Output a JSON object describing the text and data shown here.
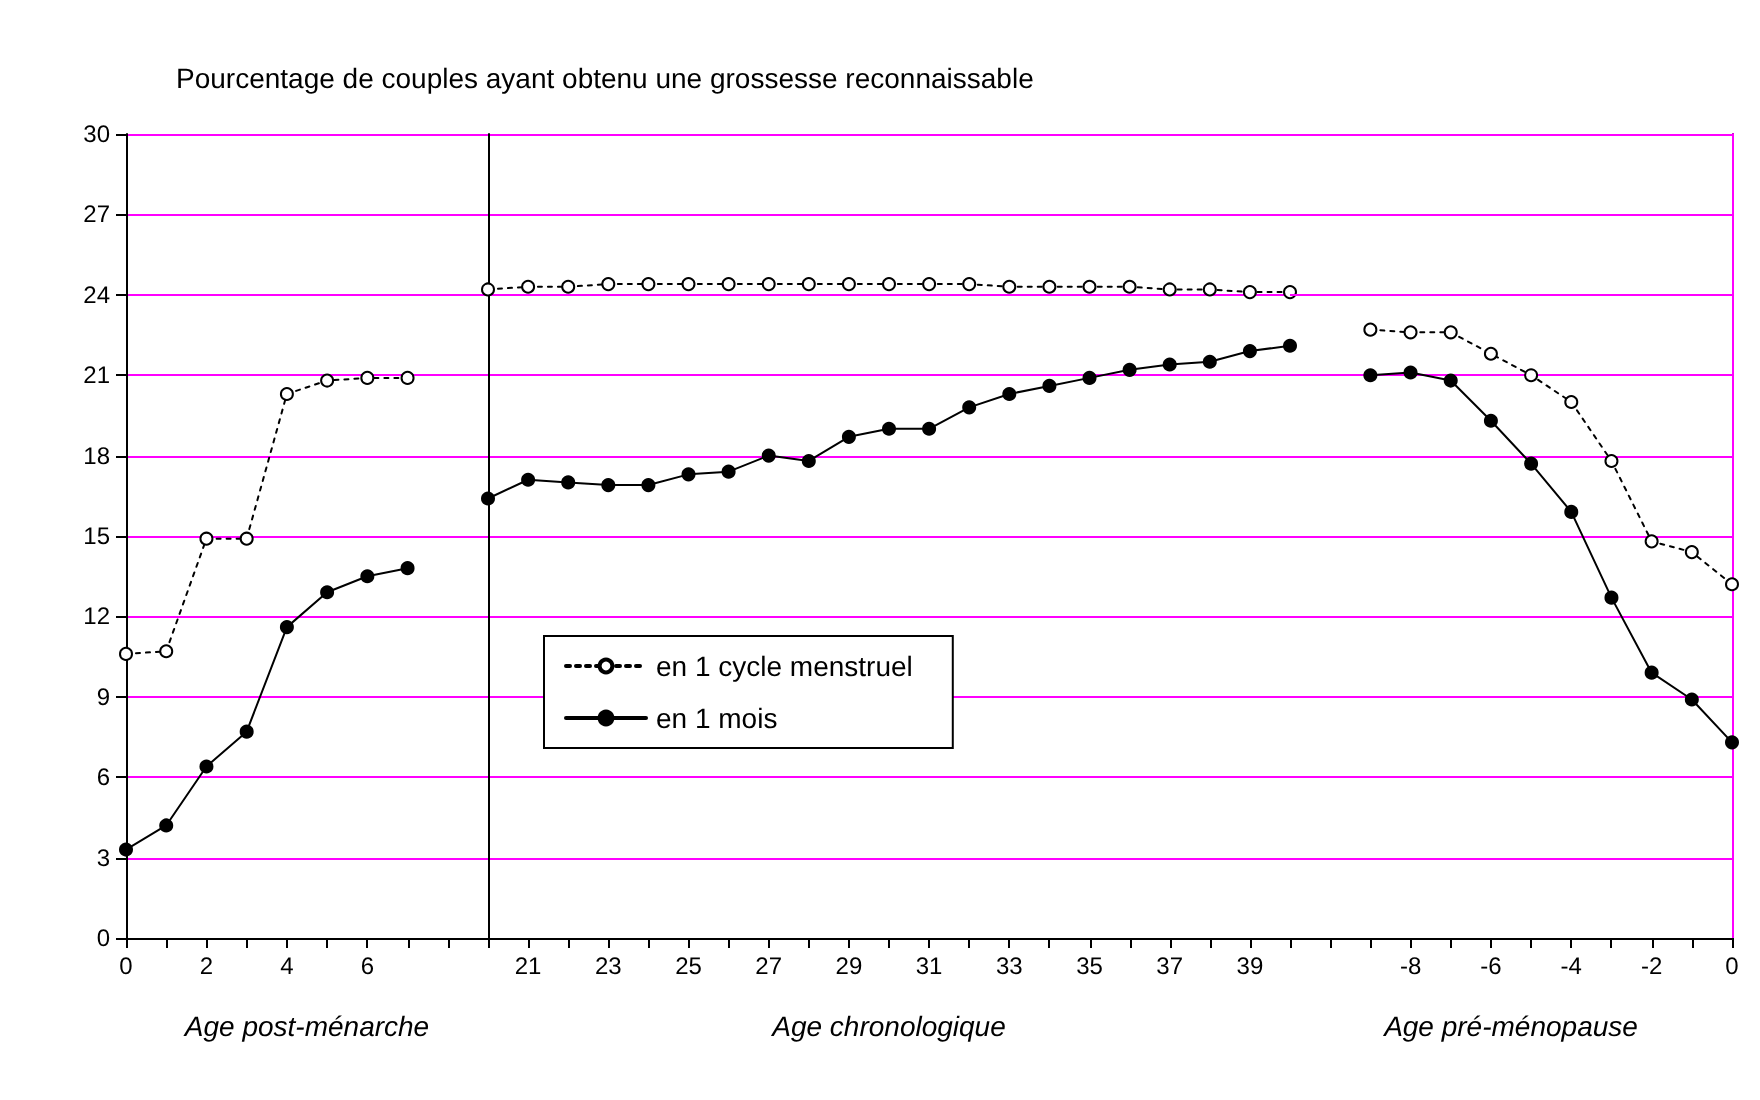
{
  "chart_data": [
    {
      "type": "line",
      "title": "Pourcentage de couples ayant obtenu une grossesse reconnaissable",
      "xlabel": "Age post-ménarche",
      "x": [
        0,
        1,
        2,
        3,
        4,
        5,
        6,
        7
      ],
      "xlim": [
        0,
        9
      ],
      "xticks": [
        0,
        {
          "value": 1,
          "label": null
        },
        2,
        {
          "value": 3,
          "label": null
        },
        4,
        {
          "value": 5,
          "label": null
        },
        6,
        {
          "value": 7,
          "label": null
        },
        {
          "value": 8,
          "label": null
        },
        {
          "value": 9,
          "label": null
        }
      ],
      "ylim": [
        0,
        30
      ],
      "yticks": [
        0,
        3,
        6,
        9,
        12,
        15,
        18,
        21,
        24,
        27,
        30
      ],
      "grid": "y",
      "marker": "circle",
      "series": [
        {
          "color": "#000000",
          "line_style": "dotted",
          "values": [
            10.6,
            10.7,
            14.9,
            14.9,
            20.3,
            20.8,
            20.9,
            20.9
          ]
        },
        {
          "color": "#000000",
          "line_style": "solid",
          "values": [
            3.3,
            4.2,
            6.4,
            7.7,
            11.6,
            12.9,
            13.5,
            13.8
          ]
        }
      ]
    },
    {
      "type": "line",
      "xlabel": "Age chronologique",
      "x": [
        20,
        21,
        22,
        23,
        24,
        25,
        26,
        27,
        28,
        29,
        30,
        31,
        32,
        33,
        34,
        35,
        36,
        37,
        38,
        39,
        40
      ],
      "xlim": [
        20,
        40
      ],
      "xticks": [
        {
          "value": 20,
          "label": null
        },
        21,
        {
          "value": 22,
          "label": null
        },
        23,
        {
          "value": 24,
          "label": null
        },
        25,
        {
          "value": 26,
          "label": null
        },
        27,
        {
          "value": 28,
          "label": null
        },
        29,
        {
          "value": 30,
          "label": null
        },
        31,
        {
          "value": 32,
          "label": null
        },
        33,
        {
          "value": 34,
          "label": null
        },
        35,
        {
          "value": 36,
          "label": null
        },
        37,
        {
          "value": 38,
          "label": null
        },
        39,
        {
          "value": 40,
          "label": null
        }
      ],
      "ylim": [
        0,
        30
      ],
      "yticks": [
        0,
        3,
        6,
        9,
        12,
        15,
        18,
        21,
        24,
        27,
        30
      ],
      "tick_labels": "x",
      "grid": "y",
      "marker": "circle",
      "legend": "bottom left",
      "series": [
        {
          "name": "en 1 cycle menstruel",
          "color": "#000000",
          "line_style": "dotted",
          "values": [
            24.2,
            24.3,
            24.3,
            24.4,
            24.4,
            24.4,
            24.4,
            24.4,
            24.4,
            24.4,
            24.4,
            24.4,
            24.4,
            24.3,
            24.3,
            24.3,
            24.3,
            24.2,
            24.2,
            24.1,
            24.1
          ]
        },
        {
          "name": "en 1 mois",
          "color": "#000000",
          "line_style": "solid",
          "values": [
            16.4,
            17.1,
            17.0,
            16.9,
            16.9,
            17.3,
            17.4,
            18.0,
            17.8,
            18.7,
            19.0,
            19.0,
            19.8,
            20.3,
            20.6,
            20.9,
            21.2,
            21.4,
            21.5,
            21.9,
            22.1
          ]
        }
      ]
    },
    {
      "type": "line",
      "xlabel": "Age pré-ménopause",
      "x": [
        -9,
        -8,
        -7,
        -6,
        -5,
        -4,
        -3,
        -2,
        -1,
        0
      ],
      "xlim": [
        -11,
        0
      ],
      "xticks": [
        {
          "value": -11,
          "label": null
        },
        {
          "value": -10,
          "label": null
        },
        {
          "value": -9,
          "label": null
        },
        -8,
        {
          "value": -7,
          "label": null
        },
        -6,
        {
          "value": -5,
          "label": null
        },
        -4,
        {
          "value": -3,
          "label": null
        },
        -2,
        {
          "value": -1,
          "label": null
        },
        0
      ],
      "ylim": [
        0,
        30
      ],
      "yticks": [
        0,
        3,
        6,
        9,
        12,
        15,
        18,
        21,
        24,
        27,
        30
      ],
      "tick_labels": "x",
      "grid": "y",
      "marker": "circle",
      "series": [
        {
          "color": "#000000",
          "line_style": "dotted",
          "values": [
            22.7,
            22.6,
            22.6,
            21.8,
            21.0,
            20.0,
            17.8,
            14.8,
            14.4,
            13.2
          ]
        },
        {
          "color": "#000000",
          "line_style": "solid",
          "values": [
            21.0,
            21.1,
            20.8,
            19.3,
            17.7,
            15.9,
            12.7,
            9.9,
            8.9,
            7.3
          ]
        }
      ]
    }
  ]
}
